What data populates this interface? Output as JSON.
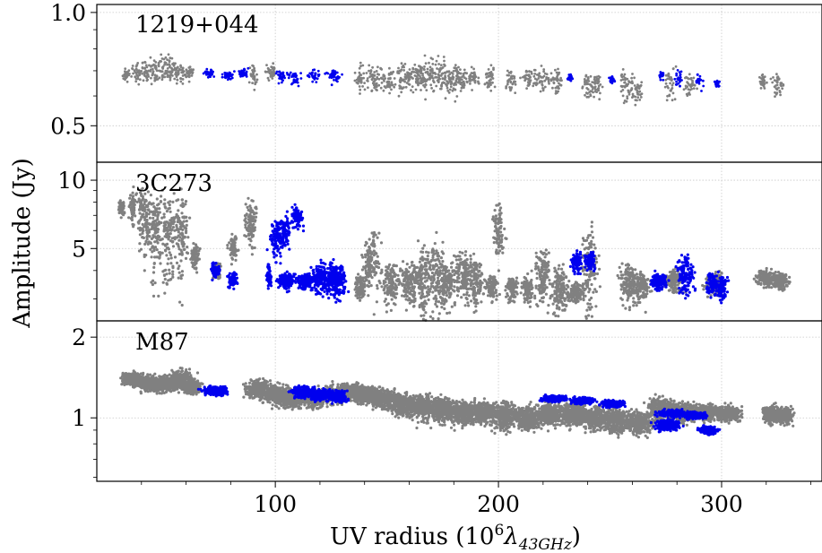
{
  "chart_data": {
    "type": "scatter",
    "xlabel": "UV radius (10⁶λ₄₃GHz)",
    "xlabel_parts": {
      "prefix": "UV radius (10",
      "exp": "6",
      "lambda": "λ",
      "sub": "43GHz",
      "suffix": ")"
    },
    "ylabel": "Amplitude (Jy)",
    "xlim": [
      20,
      345
    ],
    "xticks": [
      100,
      200,
      300
    ],
    "x_tick_labels": [
      "100",
      "200",
      "300"
    ],
    "grid": true,
    "colors": {
      "gray": "#808080",
      "blue": "#0000ee",
      "grid": "#c8c8c8",
      "axis": "#000000"
    },
    "panels": [
      {
        "label": "1219+044",
        "yscale": "log",
        "ylim": [
          0.4,
          1.05
        ],
        "yticks": [
          0.5,
          1.0
        ],
        "y_tick_labels": [
          "0.5",
          "1.0"
        ],
        "series": [
          {
            "color": "gray",
            "clusters": [
              [
                33,
                0.68,
                0.025,
                1.6
              ],
              [
                38,
                0.69,
                0.03,
                1.6
              ],
              [
                42,
                0.7,
                0.03,
                2
              ],
              [
                46,
                0.69,
                0.035,
                2
              ],
              [
                50,
                0.7,
                0.04,
                2.5
              ],
              [
                54,
                0.7,
                0.04,
                2.5
              ],
              [
                57,
                0.68,
                0.03,
                2
              ],
              [
                61,
                0.69,
                0.02,
                2
              ],
              [
                90,
                0.68,
                0.03,
                1.6
              ],
              [
                98,
                0.69,
                0.03,
                2
              ],
              [
                138,
                0.67,
                0.04,
                2
              ],
              [
                144,
                0.67,
                0.04,
                3
              ],
              [
                151,
                0.66,
                0.04,
                3
              ],
              [
                157,
                0.67,
                0.04,
                3
              ],
              [
                163,
                0.68,
                0.04,
                3
              ],
              [
                167,
                0.68,
                0.05,
                2.5
              ],
              [
                171,
                0.69,
                0.05,
                2.5
              ],
              [
                175,
                0.68,
                0.05,
                2.5
              ],
              [
                179,
                0.66,
                0.05,
                3
              ],
              [
                183,
                0.67,
                0.04,
                3
              ],
              [
                189,
                0.67,
                0.03,
                2
              ],
              [
                196,
                0.67,
                0.03,
                2
              ],
              [
                206,
                0.66,
                0.03,
                2
              ],
              [
                213,
                0.67,
                0.03,
                2
              ],
              [
                219,
                0.67,
                0.04,
                2.5
              ],
              [
                226,
                0.66,
                0.04,
                2.5
              ],
              [
                240,
                0.64,
                0.03,
                2
              ],
              [
                244,
                0.64,
                0.03,
                2
              ],
              [
                257,
                0.64,
                0.04,
                2.5
              ],
              [
                262,
                0.63,
                0.04,
                2
              ],
              [
                277,
                0.65,
                0.04,
                2
              ],
              [
                286,
                0.64,
                0.03,
                2
              ],
              [
                319,
                0.66,
                0.02,
                1.5
              ],
              [
                325,
                0.65,
                0.03,
                2
              ]
            ]
          },
          {
            "color": "blue",
            "clusters": [
              [
                71,
                0.69,
                0.012,
                1.8
              ],
              [
                79,
                0.68,
                0.012,
                1.8
              ],
              [
                86,
                0.69,
                0.012,
                1.8
              ],
              [
                103,
                0.68,
                0.015,
                1.8
              ],
              [
                109,
                0.67,
                0.02,
                2
              ],
              [
                117,
                0.68,
                0.015,
                1.8
              ],
              [
                126,
                0.68,
                0.02,
                2.5
              ],
              [
                232,
                0.67,
                0.01,
                1
              ],
              [
                251,
                0.66,
                0.01,
                1
              ],
              [
                273,
                0.68,
                0.01,
                1
              ],
              [
                281,
                0.67,
                0.02,
                1.2
              ],
              [
                290,
                0.66,
                0.02,
                1.2
              ],
              [
                298,
                0.65,
                0.01,
                1
              ]
            ]
          }
        ]
      },
      {
        "label": "3C273",
        "yscale": "log",
        "ylim": [
          2.4,
          12
        ],
        "yticks": [
          5,
          10
        ],
        "y_tick_labels": [
          "5",
          "10"
        ],
        "series": [
          {
            "color": "gray",
            "clusters": [
              [
                31,
                7.6,
                0.4,
                1.2
              ],
              [
                36,
                7.5,
                0.9,
                1.2
              ],
              [
                41,
                6.8,
                1.6,
                2.5
              ],
              [
                46,
                6.2,
                1.6,
                2.5
              ],
              [
                52,
                5.6,
                1.8,
                2.5
              ],
              [
                58,
                5.9,
                1.8,
                2.5
              ],
              [
                64,
                4.6,
                0.4,
                1.5
              ],
              [
                74,
                4.0,
                0.3,
                1.5
              ],
              [
                81,
                5.0,
                0.5,
                1.5
              ],
              [
                89,
                6.3,
                1.1,
                2
              ],
              [
                138,
                3.4,
                0.3,
                2
              ],
              [
                143,
                4.4,
                1.0,
                3
              ],
              [
                152,
                3.5,
                0.5,
                3
              ],
              [
                160,
                3.5,
                0.5,
                3
              ],
              [
                166,
                3.6,
                0.9,
                3
              ],
              [
                172,
                3.7,
                1.0,
                3
              ],
              [
                177,
                3.5,
                0.6,
                3
              ],
              [
                184,
                3.8,
                0.6,
                3
              ],
              [
                190,
                3.6,
                0.6,
                3
              ],
              [
                197,
                3.4,
                0.3,
                2
              ],
              [
                200,
                6.0,
                1.2,
                2
              ],
              [
                206,
                3.3,
                0.3,
                2
              ],
              [
                213,
                3.3,
                0.3,
                2
              ],
              [
                220,
                3.8,
                0.8,
                3
              ],
              [
                228,
                3.3,
                0.5,
                3
              ],
              [
                235,
                3.2,
                0.2,
                3
              ],
              [
                241,
                3.8,
                1.5,
                3
              ],
              [
                258,
                3.6,
                0.5,
                3
              ],
              [
                264,
                3.4,
                0.4,
                3
              ],
              [
                279,
                3.6,
                0.3,
                3
              ],
              [
                297,
                3.5,
                0.3,
                3
              ],
              [
                320,
                3.7,
                0.2,
                3
              ],
              [
                326,
                3.6,
                0.2,
                3
              ]
            ]
          },
          {
            "color": "blue",
            "clusters": [
              [
                73,
                4.0,
                0.2,
                1.5
              ],
              [
                81,
                3.6,
                0.2,
                1.5
              ],
              [
                97,
                3.8,
                0.3,
                1
              ],
              [
                100,
                5.5,
                0.8,
                2
              ],
              [
                104,
                6.0,
                0.7,
                2
              ],
              [
                110,
                6.8,
                0.5,
                2
              ],
              [
                105,
                3.6,
                0.2,
                3
              ],
              [
                113,
                3.6,
                0.2,
                3
              ],
              [
                120,
                3.7,
                0.4,
                3
              ],
              [
                125,
                3.7,
                0.4,
                3
              ],
              [
                128,
                3.6,
                0.4,
                3
              ],
              [
                235,
                4.3,
                0.3,
                2
              ],
              [
                241,
                4.4,
                0.3,
                2
              ],
              [
                272,
                3.6,
                0.2,
                3
              ],
              [
                284,
                3.8,
                0.5,
                3
              ],
              [
                296,
                3.5,
                0.3,
                2
              ],
              [
                300,
                3.4,
                0.3,
                2
              ]
            ]
          }
        ]
      },
      {
        "label": "M87",
        "yscale": "log",
        "ylim": [
          0.58,
          2.3
        ],
        "yticks": [
          1,
          2
        ],
        "y_tick_labels": [
          "1",
          "2"
        ],
        "series": [
          {
            "color": "gray",
            "clusters": [
              [
                36,
                1.4,
                0.05,
                4
              ],
              [
                43,
                1.35,
                0.06,
                5
              ],
              [
                50,
                1.33,
                0.06,
                5
              ],
              [
                57,
                1.38,
                0.08,
                5
              ],
              [
                63,
                1.3,
                0.05,
                3
              ],
              [
                92,
                1.28,
                0.06,
                4
              ],
              [
                101,
                1.22,
                0.07,
                5
              ],
              [
                108,
                1.18,
                0.06,
                5
              ],
              [
                118,
                1.18,
                0.06,
                4
              ],
              [
                126,
                1.22,
                0.06,
                4
              ],
              [
                133,
                1.26,
                0.06,
                5
              ],
              [
                141,
                1.22,
                0.06,
                5
              ],
              [
                149,
                1.18,
                0.06,
                5
              ],
              [
                157,
                1.12,
                0.07,
                5
              ],
              [
                166,
                1.1,
                0.08,
                5
              ],
              [
                175,
                1.07,
                0.08,
                5
              ],
              [
                184,
                1.04,
                0.07,
                5
              ],
              [
                193,
                1.05,
                0.07,
                5
              ],
              [
                203,
                1.02,
                0.08,
                5
              ],
              [
                213,
                1.0,
                0.07,
                5
              ],
              [
                223,
                1.03,
                0.07,
                5
              ],
              [
                233,
                1.03,
                0.07,
                5
              ],
              [
                243,
                1.0,
                0.07,
                5
              ],
              [
                253,
                0.98,
                0.07,
                5
              ],
              [
                263,
                0.96,
                0.06,
                5
              ],
              [
                273,
                1.08,
                0.07,
                5
              ],
              [
                283,
                1.05,
                0.06,
                5
              ],
              [
                293,
                1.05,
                0.05,
                4
              ],
              [
                303,
                1.04,
                0.05,
                4
              ],
              [
                322,
                1.03,
                0.05,
                3
              ],
              [
                328,
                1.02,
                0.05,
                3
              ]
            ]
          },
          {
            "color": "blue",
            "clusters": [
              [
                73,
                1.26,
                0.03,
                4
              ],
              [
                112,
                1.25,
                0.04,
                4
              ],
              [
                120,
                1.22,
                0.04,
                4
              ],
              [
                128,
                1.2,
                0.04,
                3
              ],
              [
                225,
                1.18,
                0.02,
                4
              ],
              [
                238,
                1.16,
                0.02,
                4
              ],
              [
                251,
                1.13,
                0.02,
                4
              ],
              [
                278,
                1.04,
                0.02,
                5
              ],
              [
                288,
                1.02,
                0.02,
                4
              ],
              [
                276,
                0.94,
                0.03,
                4
              ],
              [
                294,
                0.9,
                0.02,
                3
              ]
            ]
          }
        ]
      }
    ]
  }
}
